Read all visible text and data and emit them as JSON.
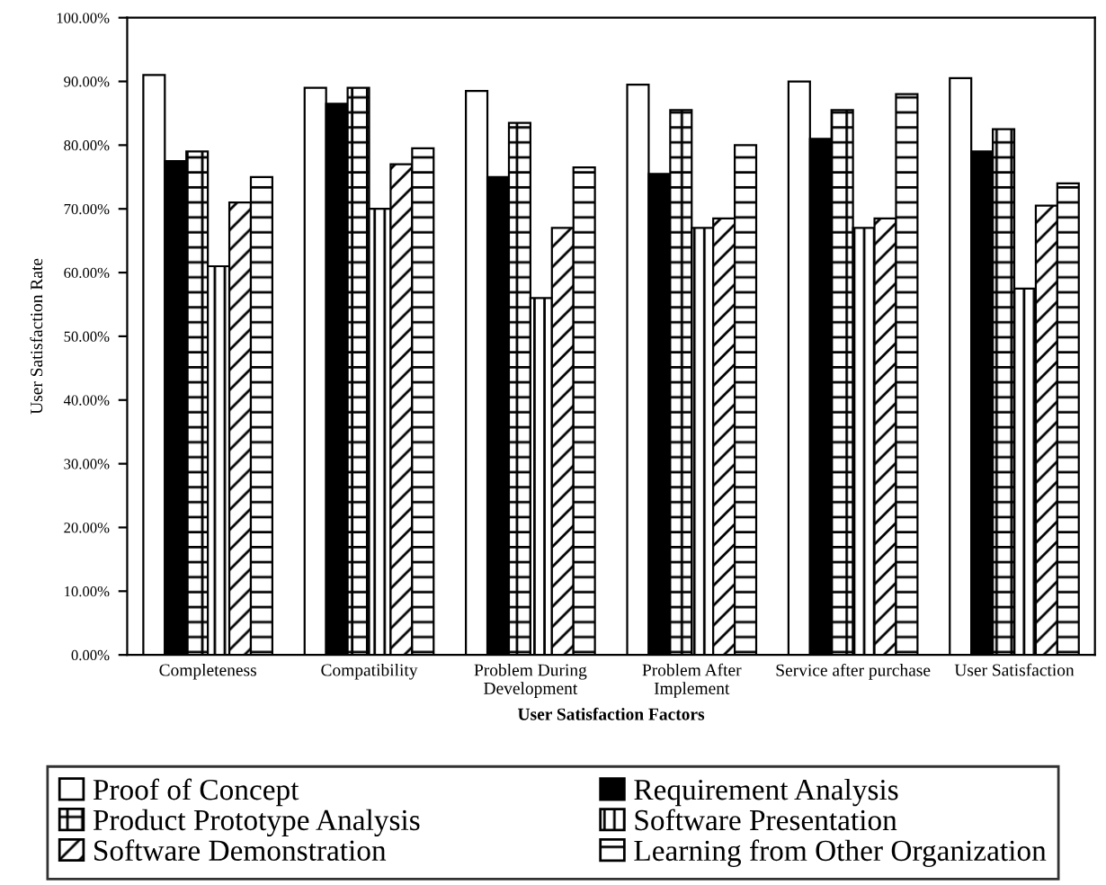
{
  "chart_data": {
    "type": "bar",
    "xlabel": "User Satisfaction Factors",
    "ylabel": "User Satisfaction Rate",
    "categories": [
      "Completeness",
      "Compatibility",
      "Problem During\nDevelopment",
      "Problem After\nImplement",
      "Service after purchase",
      "User Satisfaction"
    ],
    "series": [
      {
        "name": "Proof of Concept",
        "color": "#ffffff",
        "values": [
          91,
          89,
          88.5,
          89.5,
          90,
          90.5
        ]
      },
      {
        "name": "Requirement Analysis",
        "color": "#000000",
        "values": [
          77.5,
          86.5,
          75,
          75.5,
          81,
          79
        ]
      },
      {
        "name": "Product Prototype Analysis",
        "color": "#000000",
        "values": [
          79,
          89,
          83.5,
          85.5,
          85.5,
          82.5
        ]
      },
      {
        "name": "Software Presentation",
        "color": "#000000",
        "values": [
          61,
          70,
          56,
          67,
          67,
          57.5
        ]
      },
      {
        "name": "Software Demonstration",
        "color": "#000000",
        "values": [
          71,
          77,
          67,
          68.5,
          68.5,
          70.5
        ]
      },
      {
        "name": "Learning from Other Organization",
        "color": "#000000",
        "values": [
          75,
          79.5,
          76.5,
          80,
          88,
          74
        ]
      }
    ],
    "ylim": [
      0,
      100
    ],
    "yticks": [
      {
        "value": 0,
        "label": "0.00%"
      },
      {
        "value": 10,
        "label": "10.00%"
      },
      {
        "value": 20,
        "label": "20.00%"
      },
      {
        "value": 30,
        "label": "30.00%"
      },
      {
        "value": 40,
        "label": "40.00%"
      },
      {
        "value": 50,
        "label": "50.00%"
      },
      {
        "value": 60,
        "label": "60.00%"
      },
      {
        "value": 70,
        "label": "70.00%"
      },
      {
        "value": 80,
        "label": "80.00%"
      },
      {
        "value": 90,
        "label": "90.00%"
      },
      {
        "value": 100,
        "label": "100.00%"
      }
    ],
    "legend": "bottom"
  }
}
